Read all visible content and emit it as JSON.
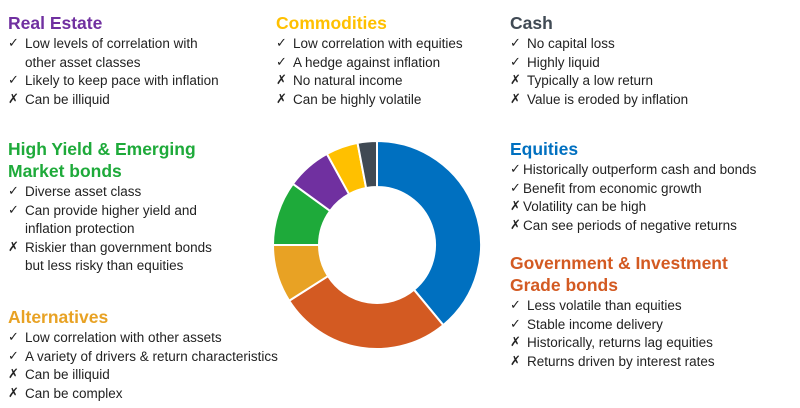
{
  "check_symbol": "✓",
  "cross_symbol": "✗",
  "colors": {
    "real_estate": "#7030A0",
    "commodities": "#FFC000",
    "cash": "#404A54",
    "high_yield": "#1EAA3A",
    "equities": "#0070C0",
    "government": "#D35A22",
    "alternatives": "#E8A224"
  },
  "real_estate": {
    "title": "Real Estate",
    "items": [
      {
        "mark": "check",
        "lines": [
          "Low levels  of correlation with",
          "other asset classes"
        ]
      },
      {
        "mark": "check",
        "lines": [
          "Likely to keep pace with inflation"
        ]
      },
      {
        "mark": "cross",
        "lines": [
          "Can be illiquid"
        ]
      }
    ]
  },
  "commodities": {
    "title": "Commodities",
    "items": [
      {
        "mark": "check",
        "lines": [
          "Low correlation with equities"
        ]
      },
      {
        "mark": "check",
        "lines": [
          "A hedge against inflation"
        ]
      },
      {
        "mark": "cross",
        "lines": [
          "No natural income"
        ]
      },
      {
        "mark": "cross",
        "lines": [
          "Can be highly volatile"
        ]
      }
    ]
  },
  "cash": {
    "title": "Cash",
    "items": [
      {
        "mark": "check",
        "lines": [
          "No capital loss"
        ]
      },
      {
        "mark": "check",
        "lines": [
          "Highly liquid"
        ]
      },
      {
        "mark": "cross",
        "lines": [
          "Typically a low return"
        ]
      },
      {
        "mark": "cross",
        "lines": [
          "Value is eroded by inflation"
        ]
      }
    ]
  },
  "high_yield": {
    "title_lines": [
      "High Yield & Emerging",
      "Market bonds"
    ],
    "items": [
      {
        "mark": "check",
        "lines": [
          "Diverse asset class"
        ]
      },
      {
        "mark": "check",
        "lines": [
          "Can provide  higher yield and",
          "inflation protection"
        ]
      },
      {
        "mark": "cross",
        "lines": [
          "Riskier than government  bonds",
          "but less risky than equities"
        ]
      }
    ]
  },
  "equities": {
    "title": "Equities",
    "items": [
      {
        "mark": "check",
        "lines": [
          "Historically outperform cash and bonds"
        ]
      },
      {
        "mark": "check",
        "lines": [
          "Benefit from economic growth"
        ]
      },
      {
        "mark": "cross",
        "lines": [
          "Volatility  can be high"
        ]
      },
      {
        "mark": "cross",
        "lines": [
          "Can see periods of negative returns"
        ]
      }
    ]
  },
  "government": {
    "title_lines": [
      "Government & Investment",
      "Grade bonds"
    ],
    "items": [
      {
        "mark": "check",
        "lines": [
          "Less volatile  than equities"
        ]
      },
      {
        "mark": "check",
        "lines": [
          "Stable income delivery"
        ]
      },
      {
        "mark": "cross",
        "lines": [
          "Historically,  returns lag equities"
        ]
      },
      {
        "mark": "cross",
        "lines": [
          "Returns  driven by interest rates"
        ]
      }
    ]
  },
  "alternatives": {
    "title": "Alternatives",
    "items": [
      {
        "mark": "check",
        "lines": [
          "Low correlation with other assets"
        ]
      },
      {
        "mark": "check",
        "lines": [
          "A variety of drivers & return  characteristics"
        ]
      },
      {
        "mark": "cross",
        "lines": [
          "Can be illiquid"
        ]
      },
      {
        "mark": "cross",
        "lines": [
          "Can be complex"
        ]
      }
    ]
  },
  "donut": {
    "segments": [
      {
        "name": "Equities",
        "share": 0.39,
        "color": "#0070C0"
      },
      {
        "name": "Government & Investment Grade bonds",
        "share": 0.27,
        "color": "#D35A22"
      },
      {
        "name": "Alternatives",
        "share": 0.09,
        "color": "#E8A224"
      },
      {
        "name": "High Yield & Emerging Market bonds",
        "share": 0.1,
        "color": "#1EAA3A"
      },
      {
        "name": "Real Estate",
        "share": 0.07,
        "color": "#7030A0"
      },
      {
        "name": "Commodities",
        "share": 0.05,
        "color": "#FFC000"
      },
      {
        "name": "Cash",
        "share": 0.03,
        "color": "#404A54"
      }
    ]
  }
}
